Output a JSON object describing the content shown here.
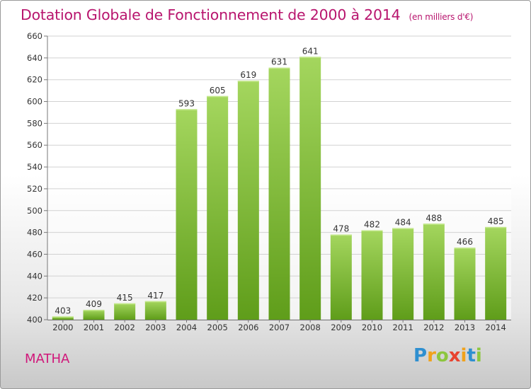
{
  "chart_data": {
    "type": "bar",
    "title": "Dotation Globale de Fonctionnement de 2000 à 2014",
    "subtitle": "(en milliers d'€)",
    "categories": [
      "2000",
      "2001",
      "2002",
      "2003",
      "2004",
      "2005",
      "2006",
      "2007",
      "2008",
      "2009",
      "2010",
      "2011",
      "2012",
      "2013",
      "2014"
    ],
    "values": [
      403,
      409,
      415,
      417,
      593,
      605,
      619,
      631,
      641,
      478,
      482,
      484,
      488,
      466,
      485
    ],
    "yticks": [
      400,
      420,
      440,
      460,
      480,
      500,
      520,
      540,
      560,
      580,
      600,
      620,
      640,
      660
    ],
    "ylim": [
      400,
      660
    ],
    "grid": true,
    "bar_color_top": "#a4d65e",
    "bar_color_bottom": "#5f9d1a"
  },
  "city": "MATHA",
  "logo": {
    "letters": [
      "P",
      "r",
      "o",
      "x",
      "i",
      "t",
      "i"
    ],
    "colors": [
      "#2e8fd0",
      "#f0a21c",
      "#8cc63e",
      "#e8432f",
      "#f0a21c",
      "#2e8fd0",
      "#8cc63e"
    ]
  }
}
